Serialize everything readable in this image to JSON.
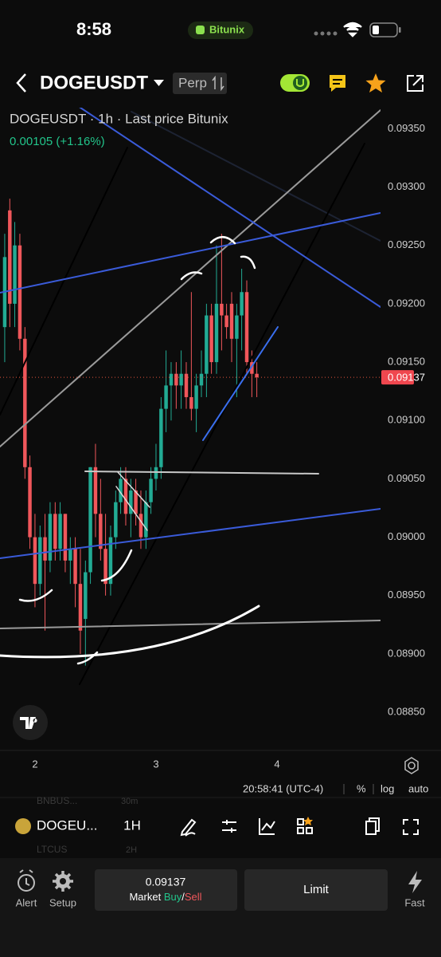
{
  "status_bar": {
    "time": "8:58",
    "brand": "Bitunix"
  },
  "header": {
    "symbol": "DOGEUSDT",
    "market": "Perp"
  },
  "chart_data": {
    "type": "candlestick",
    "title": "DOGEUSDT · 1h · Last price Bitunix",
    "subtitle": "0.00105 (+1.16%)",
    "x": [
      1.75,
      1.792,
      1.833,
      1.875,
      1.917,
      1.958,
      2.0,
      2.042,
      2.083,
      2.125,
      2.167,
      2.208,
      2.25,
      2.292,
      2.333,
      2.375,
      2.417,
      2.458,
      2.5,
      2.542,
      2.583,
      2.625,
      2.667,
      2.708,
      2.75,
      2.792,
      2.833,
      2.875,
      2.917,
      2.958,
      3.0,
      3.042,
      3.083,
      3.125,
      3.167,
      3.208,
      3.25,
      3.292,
      3.333,
      3.375,
      3.417,
      3.458,
      3.5,
      3.542,
      3.583,
      3.625,
      3.667,
      3.708,
      3.75,
      3.792,
      3.833
    ],
    "open": [
      0.0918,
      0.0928,
      0.092,
      0.0925,
      0.0917,
      0.0906,
      0.09,
      0.0896,
      0.09,
      0.0898,
      0.0902,
      0.0899,
      0.0902,
      0.0898,
      0.0899,
      0.0896,
      0.0893,
      0.0897,
      0.0906,
      0.0902,
      0.0899,
      0.0896,
      0.09,
      0.0903,
      0.0905,
      0.0902,
      0.0904,
      0.0902,
      0.09,
      0.0903,
      0.0905,
      0.0906,
      0.0911,
      0.0913,
      0.0914,
      0.0913,
      0.0914,
      0.0912,
      0.0911,
      0.0913,
      0.0914,
      0.0919,
      0.0915,
      0.092,
      0.0919,
      0.092,
      0.0917,
      0.0919,
      0.0921,
      0.0915,
      0.0914
    ],
    "high": [
      0.0926,
      0.0929,
      0.0927,
      0.0926,
      0.0918,
      0.0907,
      0.0902,
      0.0901,
      0.0902,
      0.0903,
      0.0903,
      0.0903,
      0.0902,
      0.09,
      0.09,
      0.0899,
      0.0898,
      0.0906,
      0.0908,
      0.0905,
      0.0902,
      0.0901,
      0.0904,
      0.0906,
      0.0906,
      0.0905,
      0.0905,
      0.0904,
      0.0904,
      0.0906,
      0.0908,
      0.0912,
      0.0916,
      0.0915,
      0.0915,
      0.0916,
      0.0915,
      0.0921,
      0.0914,
      0.0916,
      0.092,
      0.092,
      0.0925,
      0.0926,
      0.092,
      0.0921,
      0.092,
      0.0923,
      0.0922,
      0.0916,
      0.0915
    ],
    "low": [
      0.0915,
      0.0918,
      0.0918,
      0.0916,
      0.0905,
      0.0899,
      0.0894,
      0.0895,
      0.0892,
      0.0897,
      0.0898,
      0.0898,
      0.0897,
      0.0896,
      0.0894,
      0.089,
      0.0889,
      0.0896,
      0.09,
      0.0898,
      0.0895,
      0.0895,
      0.0899,
      0.0902,
      0.0901,
      0.09,
      0.0901,
      0.0899,
      0.0899,
      0.0902,
      0.0904,
      0.0905,
      0.0909,
      0.091,
      0.0911,
      0.0911,
      0.0911,
      0.091,
      0.0909,
      0.0912,
      0.0912,
      0.0914,
      0.0914,
      0.0916,
      0.0917,
      0.0915,
      0.0912,
      0.0916,
      0.0914,
      0.0912,
      0.0912
    ],
    "close": [
      0.0924,
      0.092,
      0.0925,
      0.0917,
      0.0906,
      0.09,
      0.0896,
      0.09,
      0.0898,
      0.0902,
      0.0899,
      0.0902,
      0.0898,
      0.0899,
      0.0896,
      0.0892,
      0.0897,
      0.0906,
      0.0902,
      0.0899,
      0.0896,
      0.09,
      0.0903,
      0.0905,
      0.0902,
      0.0904,
      0.0902,
      0.09,
      0.0903,
      0.0905,
      0.0906,
      0.0911,
      0.0913,
      0.0914,
      0.0913,
      0.0914,
      0.0912,
      0.0911,
      0.0913,
      0.0914,
      0.0919,
      0.0915,
      0.092,
      0.0919,
      0.0918,
      0.0917,
      0.0919,
      0.0921,
      0.0915,
      0.0914,
      0.09137
    ],
    "up_color": "#22ab94",
    "down_color": "#f0575b",
    "xlim": [
      1.711,
      4.855
    ],
    "xticks": [
      2,
      3,
      4
    ],
    "ylim": [
      0.08818,
      0.09368
    ],
    "yticks": [
      {
        "value": 0.0935,
        "label": "0.09350"
      },
      {
        "value": 0.093,
        "label": "0.09300"
      },
      {
        "value": 0.0925,
        "label": "0.09250"
      },
      {
        "value": 0.092,
        "label": "0.09200"
      },
      {
        "value": 0.0915,
        "label": "0.09150"
      },
      {
        "value": 0.091,
        "label": "0.09100"
      },
      {
        "value": 0.0905,
        "label": "0.09050"
      },
      {
        "value": 0.09,
        "label": "0.09000"
      },
      {
        "value": 0.0895,
        "label": "0.08950"
      },
      {
        "value": 0.089,
        "label": "0.08900"
      },
      {
        "value": 0.0885,
        "label": "0.08850"
      }
    ],
    "last_price": 0.09137,
    "grid": false
  },
  "axis_bar": {
    "clock": "20:58:41 (UTC-4)",
    "percent": "%",
    "log": "log",
    "auto": "auto"
  },
  "toolbar": {
    "symbol": "DOGEU...",
    "interval": "1H",
    "ghost_1": "BNBUS...",
    "ghost_1_interval": "30m",
    "ghost_2": "LTCUS",
    "ghost_2_interval": "2H"
  },
  "bottom": {
    "alert": "Alert",
    "setup": "Setup",
    "market": "Market",
    "buy": "Buy",
    "slash": "/",
    "sell": "Sell",
    "limit": "Limit",
    "fast": "Fast"
  }
}
